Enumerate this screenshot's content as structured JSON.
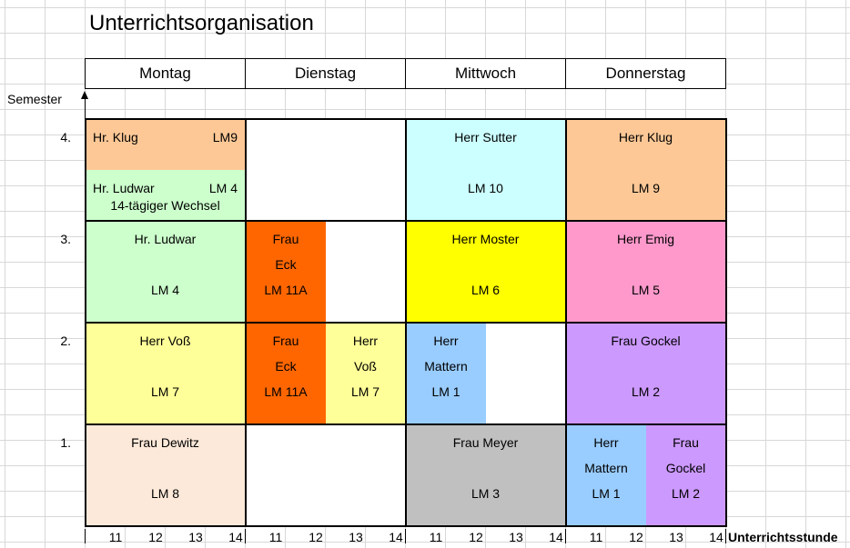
{
  "title": "Unterrichtsorganisation",
  "days": [
    "Montag",
    "Dienstag",
    "Mittwoch",
    "Donnerstag"
  ],
  "axis": {
    "y_label": "Semester",
    "x_label": "Unterrichtsstunde",
    "semesters": [
      "4.",
      "3.",
      "2.",
      "1."
    ],
    "hours": [
      "11",
      "12",
      "13",
      "14",
      "11",
      "12",
      "13",
      "14",
      "11",
      "12",
      "13",
      "14",
      "11",
      "12",
      "13",
      "14"
    ]
  },
  "colors": {
    "orange_light": "#fdc896",
    "green_light": "#ccffcc",
    "cyan_light": "#ccffff",
    "orange_dark": "#ff6600",
    "yellow": "#ffff00",
    "pink": "#ff99cc",
    "yellow_light": "#ffff99",
    "blue_light": "#99ccff",
    "lavender": "#cc99ff",
    "peach": "#fde9d9",
    "gray": "#c0c0c0",
    "white": "#ffffff"
  },
  "cells": {
    "s4_mon_top": [
      "Hr. Klug",
      "LM9"
    ],
    "s4_mon_bottom": [
      "Hr. Ludwar",
      "LM 4",
      "14-tägiger Wechsel"
    ],
    "s4_wed": [
      "Herr Sutter",
      "LM 10"
    ],
    "s4_thu": [
      "Herr Klug",
      "LM 9"
    ],
    "s3_mon": [
      "Hr. Ludwar",
      "LM 4"
    ],
    "s3_tue": [
      "Frau",
      "Eck",
      "LM 11A"
    ],
    "s3_wed": [
      "Herr Moster",
      "LM 6"
    ],
    "s3_thu": [
      "Herr Emig",
      "LM 5"
    ],
    "s2_mon": [
      "Herr Voß",
      "LM 7"
    ],
    "s2_tue_a": [
      "Frau",
      "Eck",
      "LM 11A"
    ],
    "s2_tue_b": [
      "Herr",
      "Voß",
      "LM 7"
    ],
    "s2_wed": [
      "Herr",
      "Mattern",
      "LM 1"
    ],
    "s2_thu": [
      "Frau Gockel",
      "LM 2"
    ],
    "s1_mon": [
      "Frau Dewitz",
      "LM 8"
    ],
    "s1_wed": [
      "Frau Meyer",
      "LM 3"
    ],
    "s1_thu_a": [
      "Herr",
      "Mattern",
      "LM 1"
    ],
    "s1_thu_b": [
      "Frau",
      "Gockel",
      "LM 2"
    ]
  }
}
